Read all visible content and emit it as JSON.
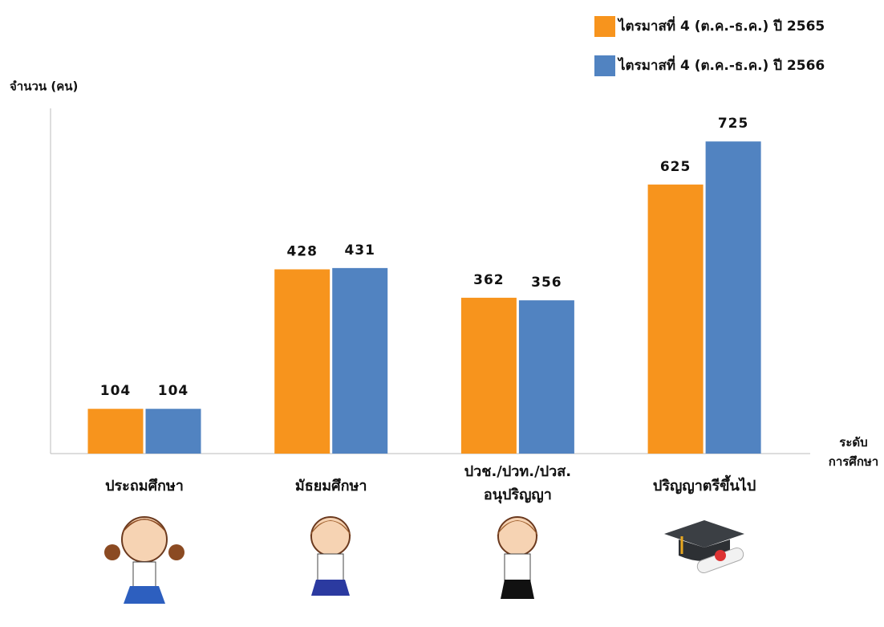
{
  "chart_data": {
    "type": "bar",
    "y_label": "จำนวน (คน)",
    "x_label": "ระดับ\nการศึกษา",
    "categories": [
      "ประถมศึกษา",
      "มัธยมศึกษา",
      "ปวช./ปวท./ปวส.\nอนุปริญญา",
      "ปริญญาตรีขึ้นไป"
    ],
    "series": [
      {
        "name": "ไตรมาสที่ 4 (ต.ค.-ธ.ค.) ปี 2565",
        "color": "#f7941d",
        "values": [
          104,
          428,
          362,
          625
        ]
      },
      {
        "name": "ไตรมาสที่ 4 (ต.ค.-ธ.ค.) ปี 2566",
        "color": "#5183c1",
        "values": [
          104,
          431,
          356,
          725
        ]
      }
    ],
    "ylim": [
      0,
      800
    ],
    "legend": "top-right"
  }
}
